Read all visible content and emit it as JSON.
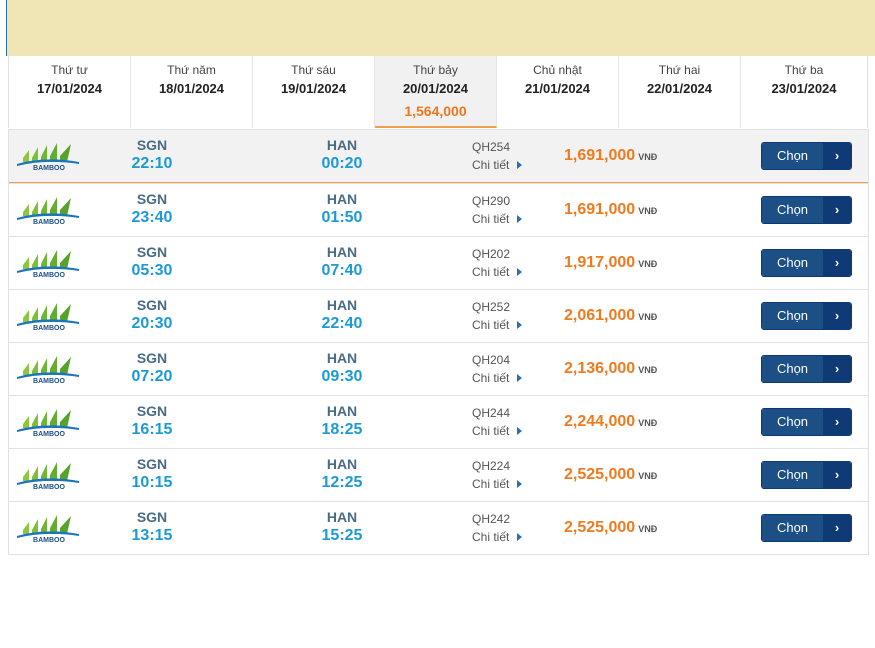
{
  "dates": [
    {
      "dow": "Thứ tư",
      "date": "17/01/2024",
      "price": ""
    },
    {
      "dow": "Thứ năm",
      "date": "18/01/2024",
      "price": ""
    },
    {
      "dow": "Thứ sáu",
      "date": "19/01/2024",
      "price": ""
    },
    {
      "dow": "Thứ bảy",
      "date": "20/01/2024",
      "price": "1,564,000",
      "active": true
    },
    {
      "dow": "Chủ nhật",
      "date": "21/01/2024",
      "price": ""
    },
    {
      "dow": "Thứ hai",
      "date": "22/01/2024",
      "price": ""
    },
    {
      "dow": "Thứ ba",
      "date": "23/01/2024",
      "price": ""
    }
  ],
  "airline_logo": "bamboo-airways-logo",
  "detail_label": "Chi tiết",
  "currency": "VNĐ",
  "choose_label": "Chọn",
  "choose_arrow": "›",
  "flights": [
    {
      "from": "SGN",
      "dep": "22:10",
      "to": "HAN",
      "arr": "00:20",
      "flight_no": "QH254",
      "price": "1,691,000"
    },
    {
      "from": "SGN",
      "dep": "23:40",
      "to": "HAN",
      "arr": "01:50",
      "flight_no": "QH290",
      "price": "1,691,000"
    },
    {
      "from": "SGN",
      "dep": "05:30",
      "to": "HAN",
      "arr": "07:40",
      "flight_no": "QH202",
      "price": "1,917,000"
    },
    {
      "from": "SGN",
      "dep": "20:30",
      "to": "HAN",
      "arr": "22:40",
      "flight_no": "QH252",
      "price": "2,061,000"
    },
    {
      "from": "SGN",
      "dep": "07:20",
      "to": "HAN",
      "arr": "09:30",
      "flight_no": "QH204",
      "price": "2,136,000"
    },
    {
      "from": "SGN",
      "dep": "16:15",
      "to": "HAN",
      "arr": "18:25",
      "flight_no": "QH244",
      "price": "2,244,000"
    },
    {
      "from": "SGN",
      "dep": "10:15",
      "to": "HAN",
      "arr": "12:25",
      "flight_no": "QH224",
      "price": "2,525,000"
    },
    {
      "from": "SGN",
      "dep": "13:15",
      "to": "HAN",
      "arr": "15:25",
      "flight_no": "QH242",
      "price": "2,525,000"
    }
  ]
}
